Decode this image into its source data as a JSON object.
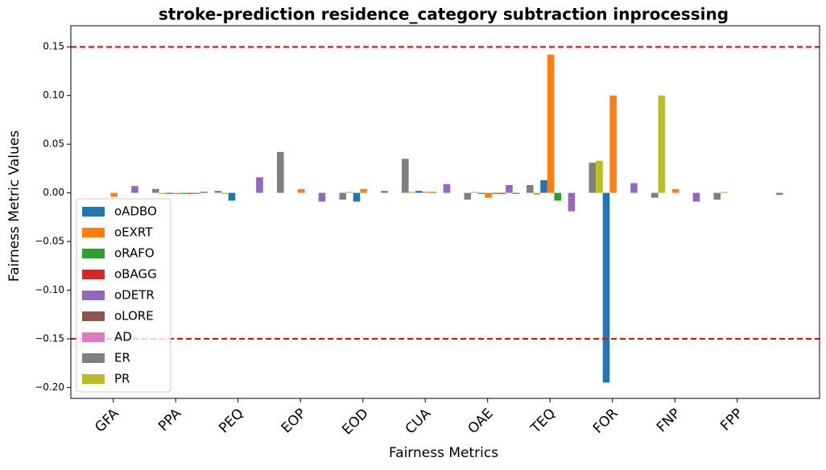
{
  "chart_data": {
    "type": "bar",
    "title": "stroke-prediction residence_category subtraction inprocessing",
    "x_label": "Fairness Metrics",
    "y_label": "Fairness Metric Values",
    "categories": [
      "GFA",
      "PPA",
      "PEQ",
      "EOP",
      "EOD",
      "CUA",
      "OAE",
      "TEQ",
      "FOR",
      "FNP",
      "FPP"
    ],
    "series": [
      {
        "name": "oADBO",
        "color": "#1f77b4",
        "values": [
          0,
          -0.001,
          -0.008,
          0,
          -0.009,
          0.002,
          -0.001,
          0.013,
          -0.195,
          0,
          0
        ]
      },
      {
        "name": "oEXRT",
        "color": "#ff7f0e",
        "values": [
          -0.004,
          -0.001,
          0,
          0.004,
          0.004,
          0.001,
          -0.005,
          0.142,
          0.1,
          0.004,
          0
        ]
      },
      {
        "name": "oRAFO",
        "color": "#2ca02c",
        "values": [
          0,
          -0.001,
          0,
          0,
          0,
          0.001,
          -0.001,
          -0.008,
          0,
          0,
          0
        ]
      },
      {
        "name": "oBAGG",
        "color": "#d62728",
        "values": [
          0,
          -0.001,
          0,
          0,
          0,
          0,
          -0.001,
          0,
          0,
          0,
          0
        ]
      },
      {
        "name": "oDETR",
        "color": "#9467bd",
        "values": [
          0.007,
          -0.001,
          0.016,
          -0.009,
          0.002,
          0.009,
          0.008,
          -0.019,
          0.01,
          -0.009,
          0
        ]
      },
      {
        "name": "oLORE",
        "color": "#8c564b",
        "values": [
          0,
          0.001,
          0,
          0,
          0,
          0,
          -0.001,
          0,
          0,
          0,
          0
        ]
      },
      {
        "name": "AD",
        "color": "#e377c2",
        "values": [
          0,
          0,
          0,
          0,
          0,
          0,
          0,
          0,
          0,
          0,
          0
        ]
      },
      {
        "name": "ER",
        "color": "#7f7f7f",
        "values": [
          0.004,
          0.002,
          0.042,
          -0.007,
          0.035,
          -0.007,
          0.008,
          0.031,
          -0.005,
          -0.007,
          -0.002
        ]
      },
      {
        "name": "PR",
        "color": "#bcbd22",
        "values": [
          -0.001,
          -0.001,
          0,
          0.001,
          0.001,
          0.001,
          -0.002,
          0.033,
          0.1,
          0.001,
          0
        ]
      }
    ],
    "ylim": [
      -0.2112,
      0.1717
    ],
    "yticks": [
      {
        "value": -0.2,
        "label": "−0.20"
      },
      {
        "value": -0.15,
        "label": "−0.15"
      },
      {
        "value": -0.1,
        "label": "−0.10"
      },
      {
        "value": -0.05,
        "label": "−0.05"
      },
      {
        "value": 0,
        "label": "0.00"
      },
      {
        "value": 0.05,
        "label": "0.05"
      },
      {
        "value": 0.1,
        "label": "0.10"
      },
      {
        "value": 0.15,
        "label": "0.15"
      }
    ],
    "hlines": [
      0.15,
      -0.15
    ],
    "hline_color": "#ff0000",
    "legend": "lower left"
  }
}
